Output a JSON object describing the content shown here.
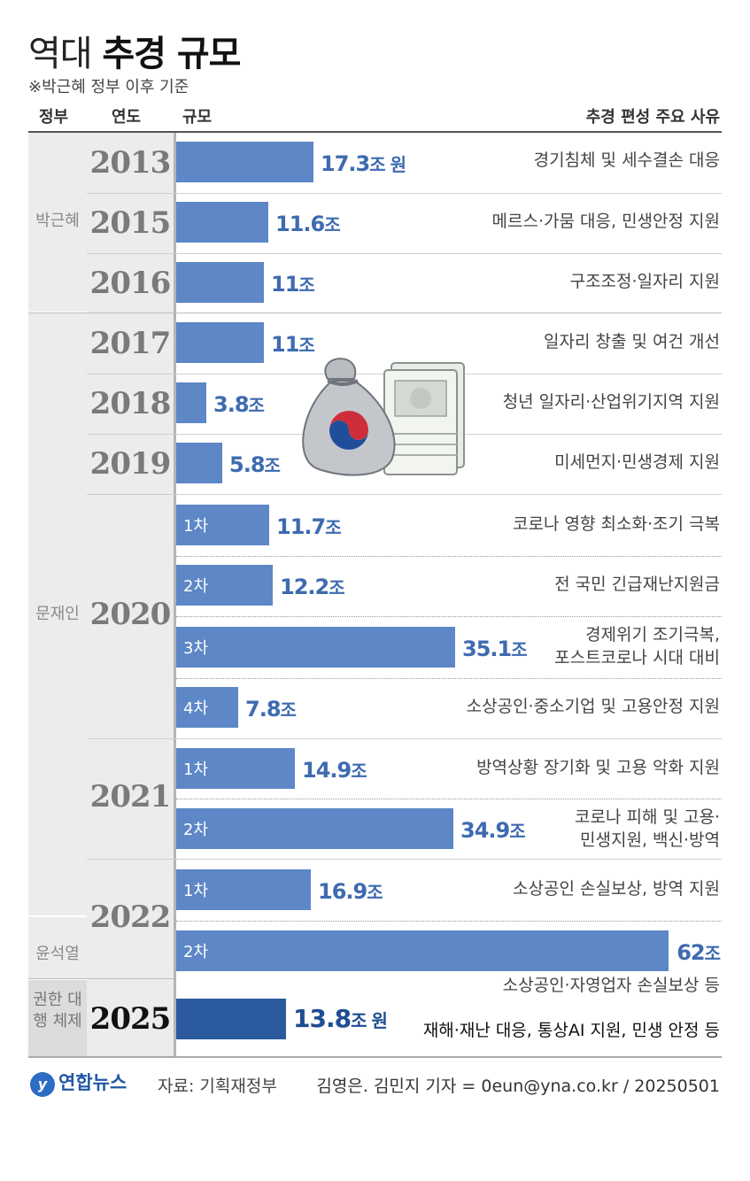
{
  "title": {
    "light": "역대",
    "bold": "추경 규모"
  },
  "subtitle": "※박근혜 정부 이후 기준",
  "headers": {
    "gov": "정부",
    "year": "연도",
    "scale": "규모",
    "reason": "추경 편성 주요 사유"
  },
  "governments": [
    "박근혜",
    "문재인",
    "윤석열",
    "권한 대행 체제"
  ],
  "footer": {
    "logo": "연합뉴스",
    "source": "자료: 기획재정부",
    "credit": "김영은. 김민지 기자 = 0eun@yna.co.kr / 20250501"
  },
  "chart_data": {
    "type": "bar",
    "orientation": "horizontal",
    "title": "역대 추경 규모",
    "unit": "조 원",
    "max_value": 62,
    "rows": [
      {
        "government": "박근혜",
        "year": "2013",
        "round": "",
        "value": 17.3,
        "label": "17.3",
        "suffix": "조 원",
        "reason": [
          "경기침체 및 세수결손 대응"
        ]
      },
      {
        "government": "박근혜",
        "year": "2015",
        "round": "",
        "value": 11.6,
        "label": "11.6",
        "suffix": "조",
        "reason": [
          "메르스·가뭄 대응, 민생안정 지원"
        ]
      },
      {
        "government": "박근혜",
        "year": "2016",
        "round": "",
        "value": 11,
        "label": "11",
        "suffix": "조",
        "reason": [
          "구조조정·일자리 지원"
        ]
      },
      {
        "government": "문재인",
        "year": "2017",
        "round": "",
        "value": 11,
        "label": "11",
        "suffix": "조",
        "reason": [
          "일자리 창출 및 여건 개선"
        ]
      },
      {
        "government": "문재인",
        "year": "2018",
        "round": "",
        "value": 3.8,
        "label": "3.8",
        "suffix": "조",
        "reason": [
          "청년 일자리·산업위기지역 지원"
        ]
      },
      {
        "government": "문재인",
        "year": "2019",
        "round": "",
        "value": 5.8,
        "label": "5.8",
        "suffix": "조",
        "reason": [
          "미세먼지·민생경제 지원"
        ]
      },
      {
        "government": "문재인",
        "year": "2020",
        "round": "1차",
        "value": 11.7,
        "label": "11.7",
        "suffix": "조",
        "reason": [
          "코로나 영향 최소화·조기 극복"
        ]
      },
      {
        "government": "문재인",
        "year": "2020",
        "round": "2차",
        "value": 12.2,
        "label": "12.2",
        "suffix": "조",
        "reason": [
          "전 국민 긴급재난지원금"
        ]
      },
      {
        "government": "문재인",
        "year": "2020",
        "round": "3차",
        "value": 35.1,
        "label": "35.1",
        "suffix": "조",
        "reason": [
          "경제위기 조기극복,",
          "포스트코로나 시대 대비"
        ]
      },
      {
        "government": "문재인",
        "year": "2020",
        "round": "4차",
        "value": 7.8,
        "label": "7.8",
        "suffix": "조",
        "reason": [
          "소상공인·중소기업 및 고용안정 지원"
        ]
      },
      {
        "government": "문재인",
        "year": "2021",
        "round": "1차",
        "value": 14.9,
        "label": "14.9",
        "suffix": "조",
        "reason": [
          "방역상황 장기화 및 고용 악화 지원"
        ]
      },
      {
        "government": "문재인",
        "year": "2021",
        "round": "2차",
        "value": 34.9,
        "label": "34.9",
        "suffix": "조",
        "reason": [
          "코로나 피해 및 고용·",
          "민생지원, 백신·방역"
        ]
      },
      {
        "government": "문재인",
        "year": "2022",
        "round": "1차",
        "value": 16.9,
        "label": "16.9",
        "suffix": "조",
        "reason": [
          "소상공인 손실보상, 방역 지원"
        ]
      },
      {
        "government": "윤석열",
        "year": "2022",
        "round": "2차",
        "value": 62,
        "label": "62",
        "suffix": "조",
        "reason": [
          "소상공인·자영업자 손실보상 등"
        ]
      },
      {
        "government": "권한 대행 체제",
        "year": "2025",
        "round": "",
        "value": 13.8,
        "label": "13.8",
        "suffix": "조 원",
        "reason": [
          "재해·재난 대응, 통상AI 지원, 민생 안정 등"
        ]
      }
    ]
  }
}
